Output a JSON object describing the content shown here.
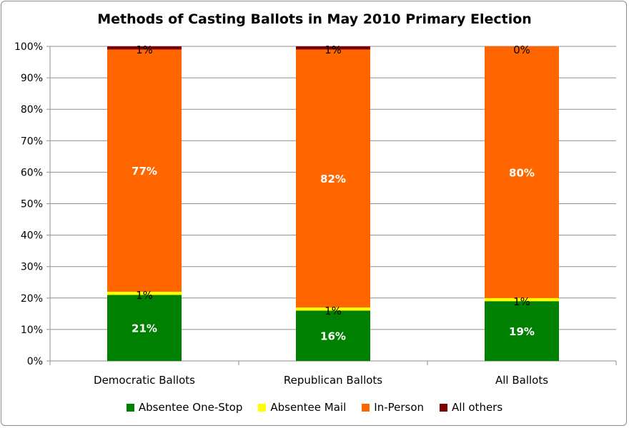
{
  "chart_data": {
    "type": "bar",
    "stacked": true,
    "title": "Methods of Casting Ballots in May 2010 Primary Election",
    "categories": [
      "Democratic Ballots",
      "Republican Ballots",
      "All Ballots"
    ],
    "ylim": [
      0,
      100
    ],
    "yticks": [
      0,
      10,
      20,
      30,
      40,
      50,
      60,
      70,
      80,
      90,
      100
    ],
    "ytick_labels": [
      "0%",
      "10%",
      "20%",
      "30%",
      "40%",
      "50%",
      "60%",
      "70%",
      "80%",
      "90%",
      "100%"
    ],
    "grid": true,
    "legend_position": "bottom",
    "series": [
      {
        "name": "Absentee One-Stop",
        "color": "#008000",
        "label_color": "#ffffff",
        "values": [
          21,
          16,
          19
        ],
        "labels": [
          "21%",
          "16%",
          "19%"
        ]
      },
      {
        "name": "Absentee Mail",
        "color": "#ffff00",
        "label_color": "#000000",
        "values": [
          1,
          1,
          1
        ],
        "labels": [
          "1%",
          "1%",
          "1%"
        ]
      },
      {
        "name": "In-Person",
        "color": "#ff6600",
        "label_color": "#ffffff",
        "values": [
          77,
          82,
          80
        ],
        "labels": [
          "77%",
          "82%",
          "80%"
        ]
      },
      {
        "name": "All others",
        "color": "#800000",
        "label_color": "#000000",
        "values": [
          1,
          1,
          0
        ],
        "labels": [
          "1%",
          "1%",
          "0%"
        ]
      }
    ]
  }
}
